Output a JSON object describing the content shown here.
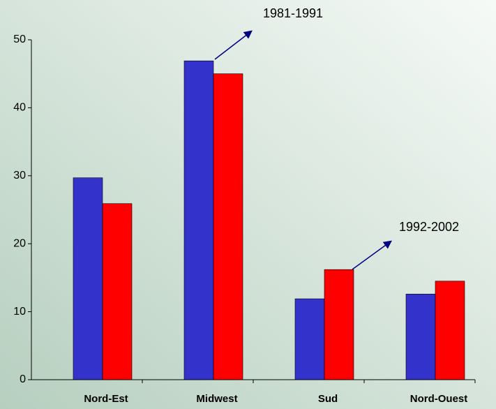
{
  "chart_data": {
    "type": "bar",
    "categories": [
      "Nord-Est",
      "Midwest",
      "Sud",
      "Nord-Ouest"
    ],
    "series": [
      {
        "name": "1981-1991",
        "color": "#3333cc",
        "values": [
          29.7,
          46.9,
          11.9,
          12.6
        ]
      },
      {
        "name": "1992-2002",
        "color": "#ff0000",
        "values": [
          25.9,
          45.0,
          16.2,
          14.5
        ]
      }
    ],
    "ylim": [
      0,
      50
    ],
    "yticks": [
      0,
      10,
      20,
      30,
      40,
      50
    ]
  }
}
